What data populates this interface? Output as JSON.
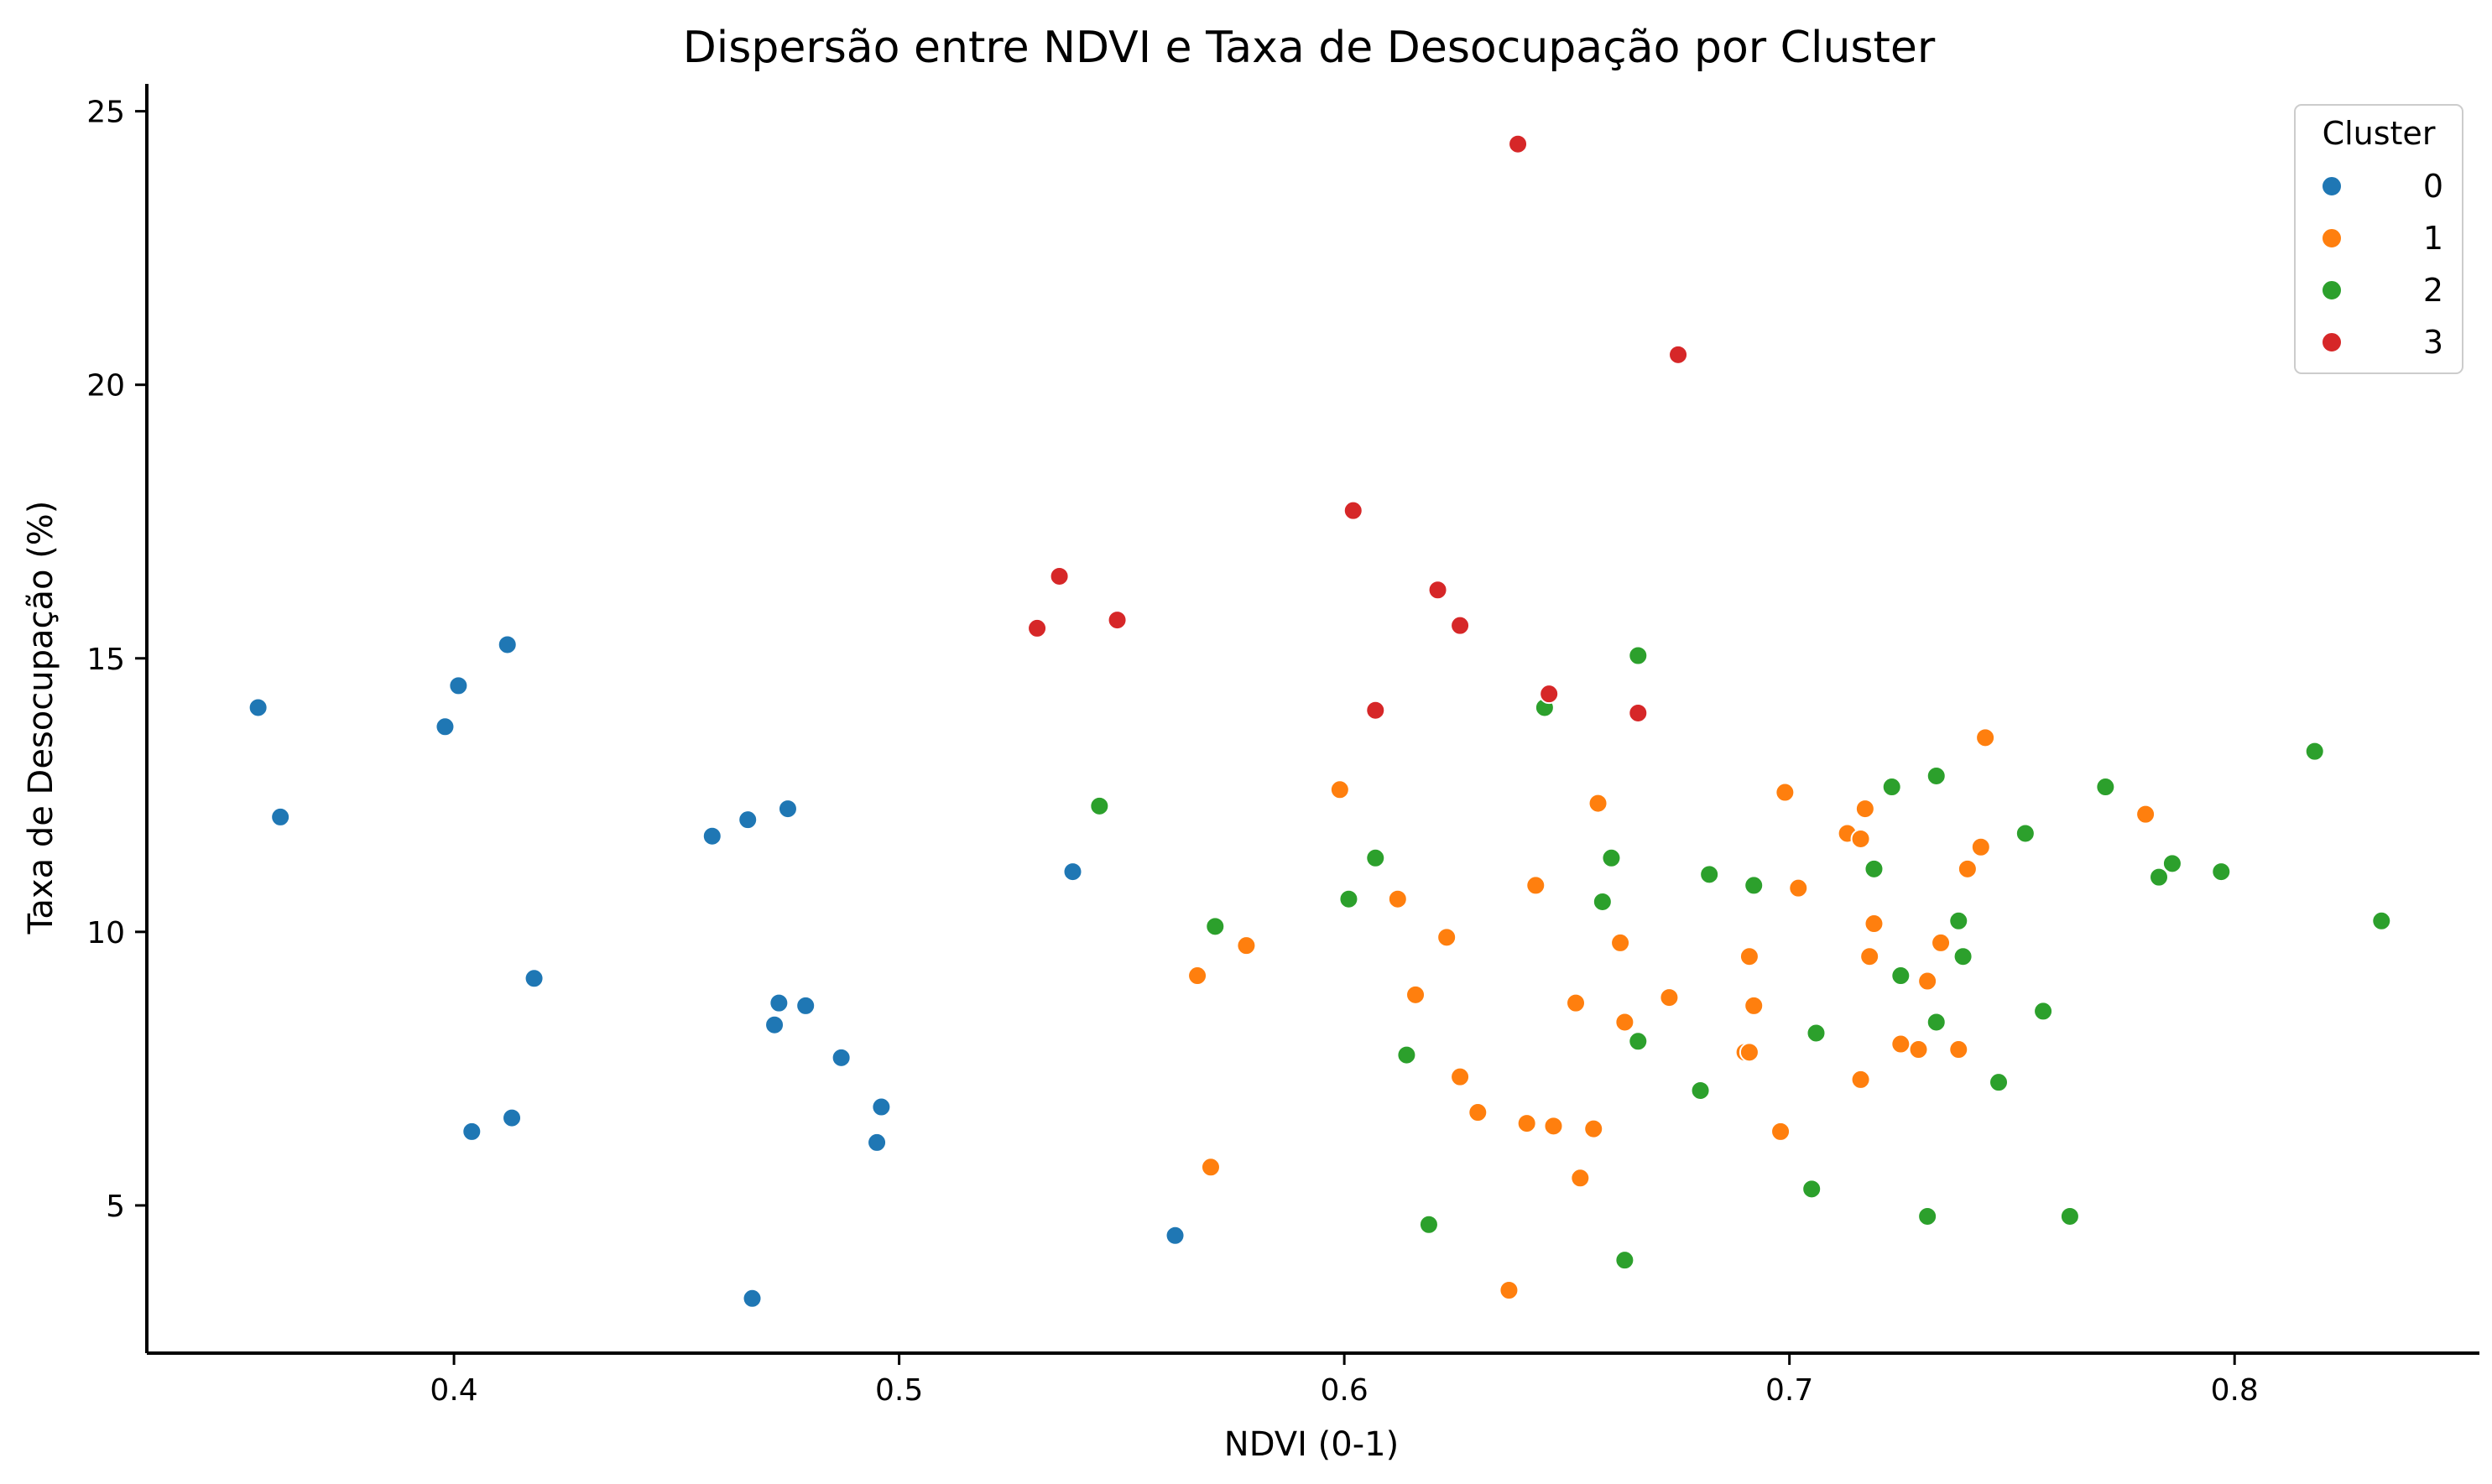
{
  "chart_data": {
    "type": "scatter",
    "title": "Dispersão entre NDVI e Taxa de Desocupação por Cluster",
    "xlabel": "NDVI (0-1)",
    "ylabel": "Taxa de Desocupação (%)",
    "xlim": [
      0.331,
      0.855
    ],
    "ylim": [
      2.3,
      25.5
    ],
    "xticks": [
      0.4,
      0.5,
      0.6,
      0.7,
      0.8
    ],
    "xtick_labels": [
      "0.4",
      "0.5",
      "0.6",
      "0.7",
      "0.8"
    ],
    "yticks": [
      5,
      10,
      15,
      20,
      25
    ],
    "ytick_labels": [
      "5",
      "10",
      "15",
      "20",
      "25"
    ],
    "grid": false,
    "legend": {
      "title": "Cluster",
      "position": "top-right"
    },
    "series": [
      {
        "name": "0",
        "color": "#1f77b4",
        "points": [
          [
            0.356,
            14.1
          ],
          [
            0.361,
            12.1
          ],
          [
            0.398,
            13.75
          ],
          [
            0.401,
            14.5
          ],
          [
            0.404,
            6.35
          ],
          [
            0.412,
            15.25
          ],
          [
            0.413,
            6.6
          ],
          [
            0.418,
            9.15
          ],
          [
            0.458,
            11.75
          ],
          [
            0.466,
            12.05
          ],
          [
            0.467,
            3.3
          ],
          [
            0.472,
            8.3
          ],
          [
            0.473,
            8.7
          ],
          [
            0.475,
            12.25
          ],
          [
            0.479,
            8.65
          ],
          [
            0.487,
            7.7
          ],
          [
            0.495,
            6.15
          ],
          [
            0.496,
            6.8
          ],
          [
            0.539,
            11.1
          ],
          [
            0.562,
            4.45
          ]
        ]
      },
      {
        "name": "1",
        "color": "#ff7f0e",
        "points": [
          [
            0.567,
            9.2
          ],
          [
            0.57,
            5.7
          ],
          [
            0.578,
            9.75
          ],
          [
            0.599,
            12.6
          ],
          [
            0.612,
            10.6
          ],
          [
            0.616,
            8.85
          ],
          [
            0.623,
            9.9
          ],
          [
            0.626,
            7.35
          ],
          [
            0.63,
            6.7
          ],
          [
            0.637,
            3.45
          ],
          [
            0.641,
            6.5
          ],
          [
            0.643,
            10.85
          ],
          [
            0.647,
            6.45
          ],
          [
            0.652,
            8.7
          ],
          [
            0.653,
            5.5
          ],
          [
            0.656,
            6.4
          ],
          [
            0.657,
            12.35
          ],
          [
            0.662,
            9.8
          ],
          [
            0.663,
            8.35
          ],
          [
            0.673,
            8.8
          ],
          [
            0.69,
            7.8
          ],
          [
            0.691,
            9.55
          ],
          [
            0.691,
            7.8
          ],
          [
            0.692,
            8.65
          ],
          [
            0.698,
            6.35
          ],
          [
            0.699,
            12.55
          ],
          [
            0.702,
            10.8
          ],
          [
            0.713,
            11.8
          ],
          [
            0.716,
            11.7
          ],
          [
            0.716,
            7.3
          ],
          [
            0.717,
            12.25
          ],
          [
            0.718,
            9.55
          ],
          [
            0.719,
            10.15
          ],
          [
            0.725,
            7.95
          ],
          [
            0.729,
            7.85
          ],
          [
            0.731,
            9.1
          ],
          [
            0.734,
            9.8
          ],
          [
            0.738,
            7.85
          ],
          [
            0.74,
            11.15
          ],
          [
            0.743,
            11.55
          ],
          [
            0.744,
            13.55
          ],
          [
            0.78,
            12.15
          ]
        ]
      },
      {
        "name": "2",
        "color": "#2ca02c",
        "points": [
          [
            0.545,
            12.3
          ],
          [
            0.571,
            10.1
          ],
          [
            0.601,
            10.6
          ],
          [
            0.607,
            11.35
          ],
          [
            0.614,
            7.75
          ],
          [
            0.619,
            4.65
          ],
          [
            0.645,
            14.1
          ],
          [
            0.658,
            10.55
          ],
          [
            0.66,
            11.35
          ],
          [
            0.663,
            4.0
          ],
          [
            0.666,
            8.0
          ],
          [
            0.666,
            15.05
          ],
          [
            0.68,
            7.1
          ],
          [
            0.682,
            11.05
          ],
          [
            0.692,
            10.85
          ],
          [
            0.705,
            5.3
          ],
          [
            0.706,
            8.15
          ],
          [
            0.719,
            11.15
          ],
          [
            0.723,
            12.65
          ],
          [
            0.725,
            9.2
          ],
          [
            0.731,
            4.8
          ],
          [
            0.733,
            12.85
          ],
          [
            0.733,
            8.35
          ],
          [
            0.738,
            10.2
          ],
          [
            0.739,
            9.55
          ],
          [
            0.747,
            7.25
          ],
          [
            0.753,
            11.8
          ],
          [
            0.757,
            8.55
          ],
          [
            0.763,
            4.8
          ],
          [
            0.771,
            12.65
          ],
          [
            0.783,
            11.0
          ],
          [
            0.786,
            11.25
          ],
          [
            0.797,
            11.1
          ],
          [
            0.818,
            13.3
          ],
          [
            0.833,
            10.2
          ]
        ]
      },
      {
        "name": "3",
        "color": "#d62728",
        "points": [
          [
            0.531,
            15.55
          ],
          [
            0.536,
            16.5
          ],
          [
            0.549,
            15.7
          ],
          [
            0.602,
            17.7
          ],
          [
            0.607,
            14.05
          ],
          [
            0.621,
            16.25
          ],
          [
            0.626,
            15.6
          ],
          [
            0.639,
            24.4
          ],
          [
            0.646,
            14.35
          ],
          [
            0.666,
            14.0
          ],
          [
            0.675,
            20.55
          ]
        ]
      }
    ]
  }
}
